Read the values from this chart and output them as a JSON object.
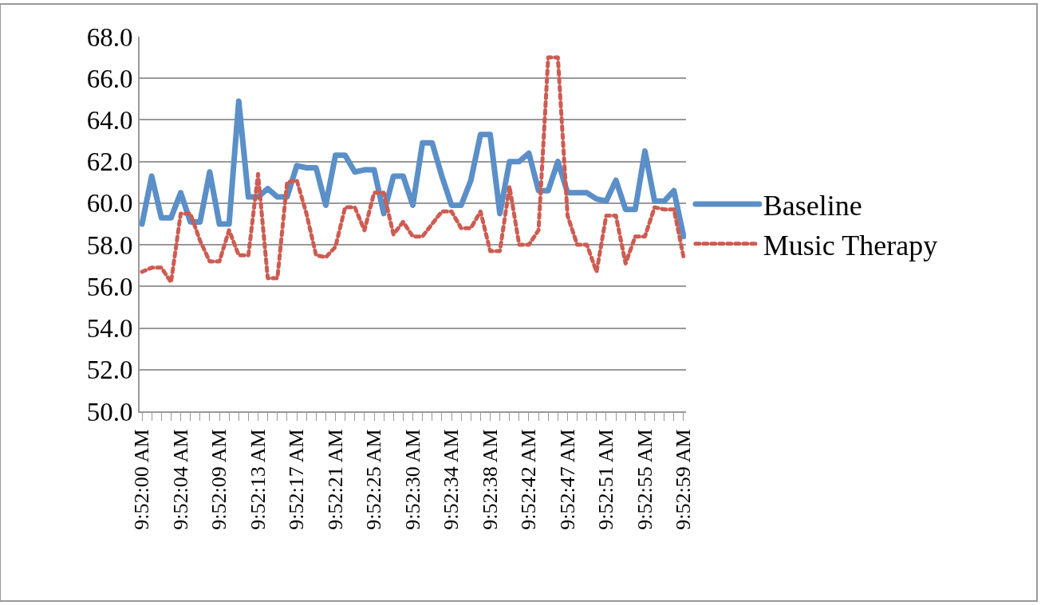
{
  "chart_data": {
    "type": "line",
    "categories": [
      "9:52:00 AM",
      null,
      null,
      null,
      "9:52:04 AM",
      null,
      null,
      null,
      "9:52:09 AM",
      null,
      null,
      null,
      "9:52:13 AM",
      null,
      null,
      null,
      "9:52:17 AM",
      null,
      null,
      null,
      "9:52:21 AM",
      null,
      null,
      null,
      "9:52:25 AM",
      null,
      null,
      null,
      "9:52:30 AM",
      null,
      null,
      null,
      "9:52:34 AM",
      null,
      null,
      null,
      "9:52:38 AM",
      null,
      null,
      null,
      "9:52:42 AM",
      null,
      null,
      null,
      "9:52:47 AM",
      null,
      null,
      null,
      "9:52:51 AM",
      null,
      null,
      null,
      "9:52:55 AM",
      null,
      null,
      null,
      "9:52:59 AM"
    ],
    "series": [
      {
        "name": "Baseline",
        "color": "#5b8fc8",
        "line_style": "solid",
        "values": [
          59.0,
          61.3,
          59.3,
          59.3,
          60.5,
          59.1,
          59.1,
          61.5,
          59.0,
          59.0,
          64.9,
          60.3,
          60.3,
          60.7,
          60.3,
          60.3,
          61.8,
          61.7,
          61.7,
          59.9,
          62.3,
          62.3,
          61.5,
          61.6,
          61.6,
          59.5,
          61.3,
          61.3,
          59.9,
          62.9,
          62.9,
          61.3,
          59.9,
          59.9,
          61.1,
          63.3,
          63.3,
          59.5,
          62.0,
          62.0,
          62.4,
          60.6,
          60.6,
          62.0,
          60.5,
          60.5,
          60.5,
          60.2,
          60.1,
          61.1,
          59.7,
          59.7,
          62.5,
          60.1,
          60.1,
          60.6,
          58.4
        ]
      },
      {
        "name": "Music Therapy",
        "color": "#cd5c52",
        "line_style": "dotted",
        "values": [
          56.7,
          56.9,
          56.9,
          56.2,
          59.5,
          59.5,
          58.2,
          57.2,
          57.2,
          58.7,
          57.5,
          57.5,
          61.4,
          56.4,
          56.4,
          61.0,
          61.1,
          59.5,
          57.5,
          57.4,
          57.9,
          59.8,
          59.8,
          58.7,
          60.5,
          60.5,
          58.5,
          59.1,
          58.4,
          58.4,
          59.0,
          59.6,
          59.6,
          58.8,
          58.8,
          59.6,
          57.7,
          57.7,
          60.8,
          58.0,
          58.0,
          58.7,
          67.0,
          67.0,
          59.4,
          58.0,
          58.0,
          56.7,
          59.4,
          59.4,
          57.1,
          58.4,
          58.4,
          59.8,
          59.7,
          59.7,
          57.4
        ]
      }
    ],
    "ylim": [
      50,
      68
    ],
    "yticks": [
      {
        "value": 50,
        "label": "50.0"
      },
      {
        "value": 52,
        "label": "52.0"
      },
      {
        "value": 54,
        "label": "54.0"
      },
      {
        "value": 56,
        "label": "56.0"
      },
      {
        "value": 58,
        "label": "58.0"
      },
      {
        "value": 60,
        "label": "60.0"
      },
      {
        "value": 62,
        "label": "62.0"
      },
      {
        "value": 64,
        "label": "64.0"
      },
      {
        "value": 66,
        "label": "66.0"
      },
      {
        "value": 68,
        "label": "68.0"
      }
    ],
    "grid": "y",
    "legend": "right",
    "marker": "none"
  }
}
